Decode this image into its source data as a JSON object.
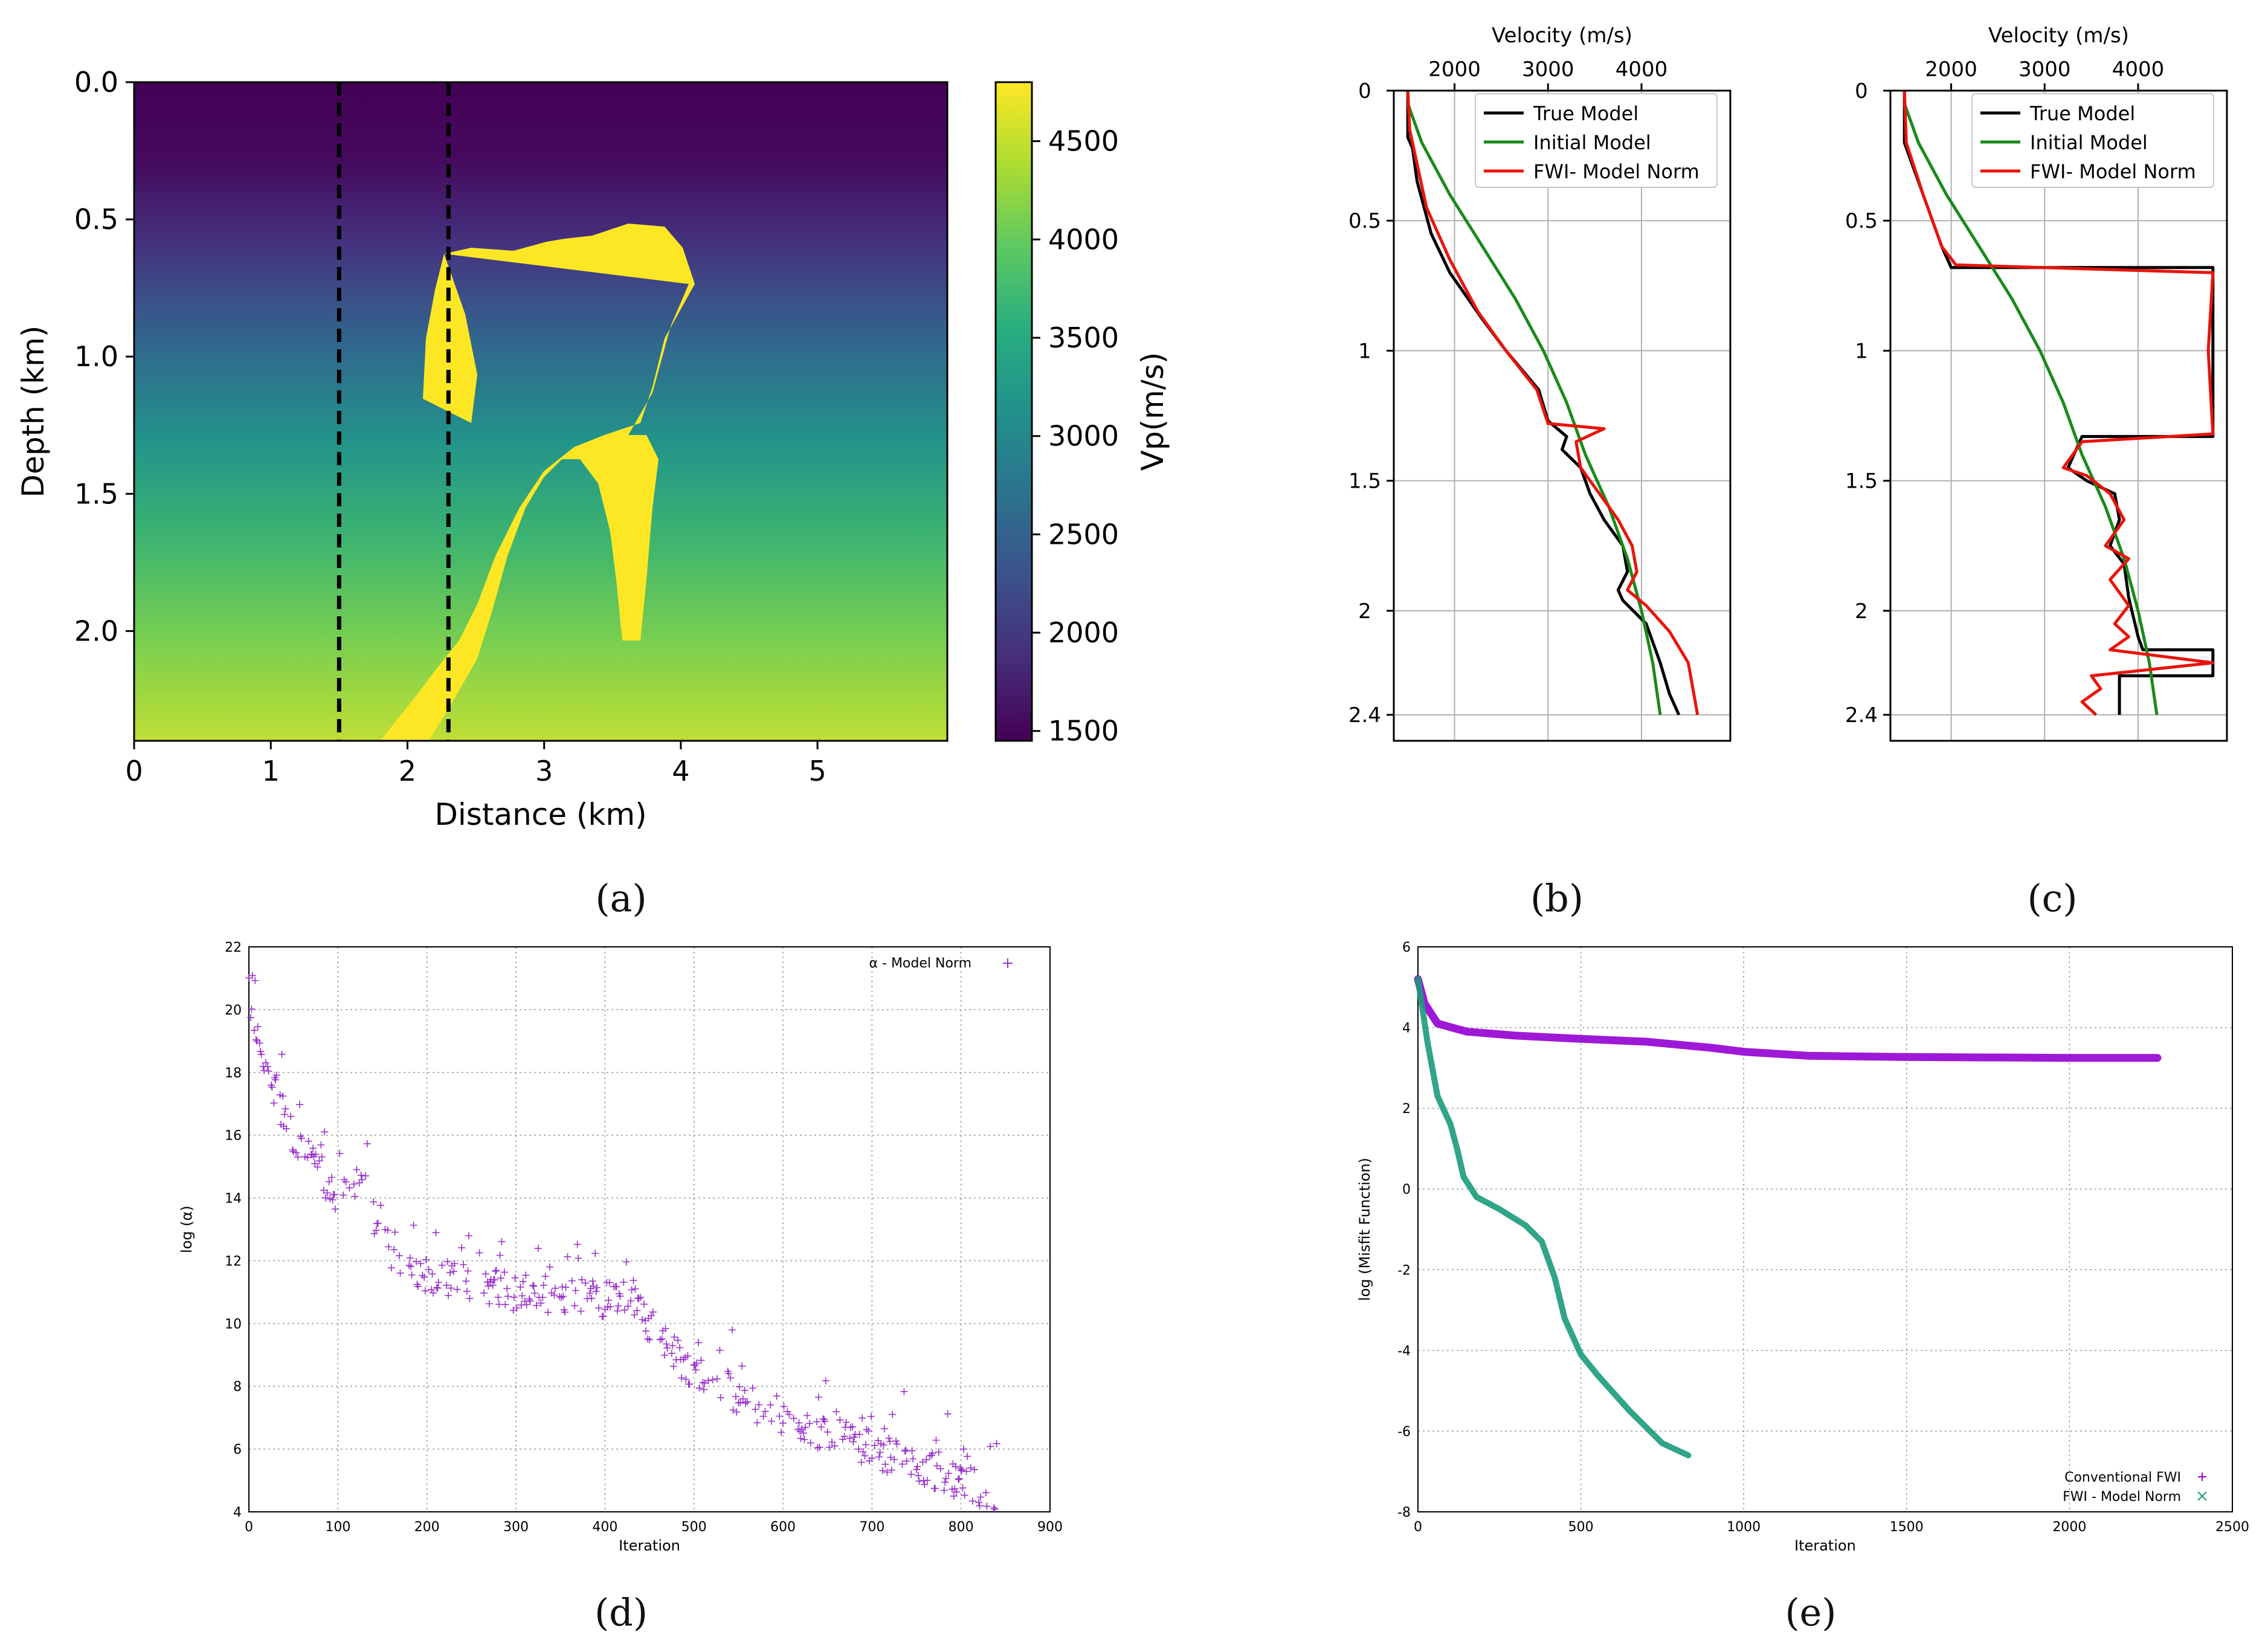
{
  "panel_labels": [
    "(a)",
    "(b)",
    "(c)",
    "(d)",
    "(e)"
  ],
  "chart_data": [
    {
      "id": "a",
      "type": "heatmap",
      "xlabel": "Distance (km)",
      "ylabel": "Depth (km)",
      "xlim": [
        0,
        5.95
      ],
      "ylim": [
        0,
        2.4
      ],
      "y_inverted": true,
      "x_ticks": [
        0,
        1,
        2,
        3,
        4,
        5
      ],
      "y_ticks": [
        "0.0",
        "0.5",
        "1.0",
        "1.5",
        "2.0"
      ],
      "dashed_lines_x_km": [
        1.5,
        2.3
      ],
      "colorbar": {
        "label": "Vp(m/s)",
        "range": [
          1450,
          4800
        ],
        "ticks": [
          1500,
          2000,
          2500,
          3000,
          3500,
          4000,
          4500
        ],
        "colormap": [
          "#440154",
          "#472d7b",
          "#3b528b",
          "#2c728e",
          "#21918c",
          "#28ae80",
          "#5ec962",
          "#addc30",
          "#fde725"
        ]
      }
    },
    {
      "id": "b",
      "type": "line",
      "xlabel": "Velocity (m/s)",
      "x_ticks": [
        2000,
        3000,
        4000
      ],
      "xlim": [
        1350,
        4950
      ],
      "ylim": [
        0,
        2.5
      ],
      "y_inverted": true,
      "y_ticks": [
        "0",
        "0.5",
        "1",
        "1.5",
        "2",
        "2.4"
      ],
      "grid": true,
      "legend": "top-right",
      "series": [
        {
          "name": "True Model",
          "color": "#000000",
          "points": [
            [
              1500,
              0
            ],
            [
              1500,
              0.18
            ],
            [
              1550,
              0.22
            ],
            [
              1600,
              0.35
            ],
            [
              1750,
              0.55
            ],
            [
              1950,
              0.7
            ],
            [
              2300,
              0.88
            ],
            [
              2550,
              1.0
            ],
            [
              2900,
              1.15
            ],
            [
              3000,
              1.27
            ],
            [
              3200,
              1.33
            ],
            [
              3150,
              1.38
            ],
            [
              3350,
              1.45
            ],
            [
              3450,
              1.55
            ],
            [
              3600,
              1.65
            ],
            [
              3800,
              1.75
            ],
            [
              3850,
              1.85
            ],
            [
              3750,
              1.92
            ],
            [
              3800,
              1.96
            ],
            [
              4050,
              2.05
            ],
            [
              4200,
              2.2
            ],
            [
              4300,
              2.32
            ],
            [
              4400,
              2.4
            ]
          ]
        },
        {
          "name": "Initial Model",
          "color": "#1a8a1a",
          "points": [
            [
              1500,
              0.05
            ],
            [
              1650,
              0.2
            ],
            [
              1950,
              0.4
            ],
            [
              2300,
              0.6
            ],
            [
              2650,
              0.8
            ],
            [
              2950,
              1.0
            ],
            [
              3200,
              1.2
            ],
            [
              3400,
              1.4
            ],
            [
              3650,
              1.6
            ],
            [
              3850,
              1.8
            ],
            [
              4000,
              2.0
            ],
            [
              4120,
              2.2
            ],
            [
              4200,
              2.4
            ]
          ]
        },
        {
          "name": "FWI- Model Norm",
          "color": "#e8140c",
          "points": [
            [
              1500,
              0
            ],
            [
              1520,
              0.15
            ],
            [
              1580,
              0.25
            ],
            [
              1700,
              0.45
            ],
            [
              1950,
              0.65
            ],
            [
              2250,
              0.85
            ],
            [
              2550,
              1.0
            ],
            [
              2880,
              1.15
            ],
            [
              3000,
              1.28
            ],
            [
              3600,
              1.3
            ],
            [
              3300,
              1.35
            ],
            [
              3350,
              1.45
            ],
            [
              3550,
              1.55
            ],
            [
              3750,
              1.65
            ],
            [
              3900,
              1.75
            ],
            [
              3950,
              1.85
            ],
            [
              3850,
              1.92
            ],
            [
              4050,
              1.98
            ],
            [
              4300,
              2.08
            ],
            [
              4500,
              2.2
            ],
            [
              4550,
              2.3
            ],
            [
              4600,
              2.4
            ]
          ]
        }
      ]
    },
    {
      "id": "c",
      "type": "line",
      "xlabel": "Velocity (m/s)",
      "x_ticks": [
        2000,
        3000,
        4000
      ],
      "xlim": [
        1350,
        4950
      ],
      "ylim": [
        0,
        2.5
      ],
      "y_inverted": true,
      "y_ticks": [
        "0",
        "0.5",
        "1",
        "1.5",
        "2",
        "2.4"
      ],
      "grid": true,
      "legend": "top-right",
      "series": [
        {
          "name": "True Model",
          "color": "#000000",
          "points": [
            [
              1500,
              0
            ],
            [
              1500,
              0.2
            ],
            [
              1750,
              0.45
            ],
            [
              1900,
              0.6
            ],
            [
              2000,
              0.68
            ],
            [
              4800,
              0.68
            ],
            [
              4800,
              1.33
            ],
            [
              3400,
              1.33
            ],
            [
              3250,
              1.45
            ],
            [
              3450,
              1.5
            ],
            [
              3750,
              1.55
            ],
            [
              3800,
              1.65
            ],
            [
              3700,
              1.75
            ],
            [
              3850,
              1.82
            ],
            [
              3900,
              1.95
            ],
            [
              4000,
              2.1
            ],
            [
              4050,
              2.15
            ],
            [
              4800,
              2.15
            ],
            [
              4800,
              2.25
            ],
            [
              3800,
              2.25
            ],
            [
              3800,
              2.4
            ]
          ]
        },
        {
          "name": "Initial Model",
          "color": "#1a8a1a",
          "points": [
            [
              1500,
              0.05
            ],
            [
              1650,
              0.2
            ],
            [
              1950,
              0.4
            ],
            [
              2300,
              0.6
            ],
            [
              2650,
              0.8
            ],
            [
              2950,
              1.0
            ],
            [
              3200,
              1.2
            ],
            [
              3400,
              1.4
            ],
            [
              3650,
              1.6
            ],
            [
              3850,
              1.8
            ],
            [
              4000,
              2.0
            ],
            [
              4120,
              2.2
            ],
            [
              4200,
              2.4
            ]
          ]
        },
        {
          "name": "FWI- Model Norm",
          "color": "#e8140c",
          "points": [
            [
              1500,
              0
            ],
            [
              1520,
              0.2
            ],
            [
              1700,
              0.4
            ],
            [
              1900,
              0.6
            ],
            [
              2050,
              0.67
            ],
            [
              4800,
              0.7
            ],
            [
              4750,
              1.0
            ],
            [
              4800,
              1.32
            ],
            [
              3400,
              1.35
            ],
            [
              3200,
              1.45
            ],
            [
              3450,
              1.48
            ],
            [
              3700,
              1.55
            ],
            [
              3850,
              1.65
            ],
            [
              3650,
              1.75
            ],
            [
              3900,
              1.8
            ],
            [
              3700,
              1.88
            ],
            [
              3900,
              1.98
            ],
            [
              3750,
              2.05
            ],
            [
              3900,
              2.1
            ],
            [
              3700,
              2.15
            ],
            [
              4800,
              2.2
            ],
            [
              3500,
              2.25
            ],
            [
              3600,
              2.3
            ],
            [
              3400,
              2.35
            ],
            [
              3550,
              2.4
            ]
          ]
        }
      ]
    },
    {
      "id": "d",
      "type": "scatter",
      "xlabel": "Iteration",
      "ylabel": "log (α)",
      "xlim": [
        0,
        900
      ],
      "ylim": [
        4,
        22
      ],
      "x_ticks": [
        0,
        100,
        200,
        300,
        400,
        500,
        600,
        700,
        800,
        900
      ],
      "y_ticks": [
        4,
        6,
        8,
        10,
        12,
        14,
        16,
        18,
        20,
        22
      ],
      "grid": true,
      "legend": "top-right",
      "series": [
        {
          "name": "α - Model Norm",
          "color": "#9932cc",
          "trend": [
            [
              0,
              20.5
            ],
            [
              20,
              18
            ],
            [
              50,
              16
            ],
            [
              100,
              14
            ],
            [
              130,
              14.5
            ],
            [
              150,
              12.5
            ],
            [
              200,
              11.5
            ],
            [
              300,
              11
            ],
            [
              400,
              10.8
            ],
            [
              430,
              11
            ],
            [
              460,
              9.5
            ],
            [
              500,
              8.5
            ],
            [
              600,
              7
            ],
            [
              700,
              6
            ],
            [
              800,
              5
            ],
            [
              840,
              4.5
            ]
          ]
        }
      ]
    },
    {
      "id": "e",
      "type": "scatter",
      "xlabel": "Iteration",
      "ylabel": "log (Misfit Function)",
      "xlim": [
        0,
        2500
      ],
      "ylim": [
        -8,
        6
      ],
      "x_ticks": [
        0,
        500,
        1000,
        1500,
        2000,
        2500
      ],
      "y_ticks": [
        -8,
        -6,
        -4,
        -2,
        0,
        2,
        4,
        6
      ],
      "grid": true,
      "legend": "bottom-right",
      "series": [
        {
          "name": "Conventional FWI",
          "color": "#9400d3",
          "points": [
            [
              0,
              5.2
            ],
            [
              20,
              4.6
            ],
            [
              60,
              4.1
            ],
            [
              150,
              3.9
            ],
            [
              300,
              3.8
            ],
            [
              500,
              3.72
            ],
            [
              700,
              3.65
            ],
            [
              900,
              3.5
            ],
            [
              1000,
              3.4
            ],
            [
              1200,
              3.3
            ],
            [
              1500,
              3.27
            ],
            [
              2000,
              3.25
            ],
            [
              2270,
              3.25
            ]
          ]
        },
        {
          "name": "FWI - Model Norm",
          "color": "#1a9b7a",
          "points": [
            [
              0,
              5.2
            ],
            [
              30,
              3.6
            ],
            [
              60,
              2.3
            ],
            [
              100,
              1.6
            ],
            [
              120,
              1.0
            ],
            [
              140,
              0.3
            ],
            [
              180,
              -0.2
            ],
            [
              250,
              -0.5
            ],
            [
              330,
              -0.9
            ],
            [
              380,
              -1.3
            ],
            [
              420,
              -2.2
            ],
            [
              450,
              -3.2
            ],
            [
              500,
              -4.1
            ],
            [
              550,
              -4.6
            ],
            [
              650,
              -5.5
            ],
            [
              750,
              -6.3
            ],
            [
              830,
              -6.6
            ]
          ]
        }
      ]
    }
  ]
}
